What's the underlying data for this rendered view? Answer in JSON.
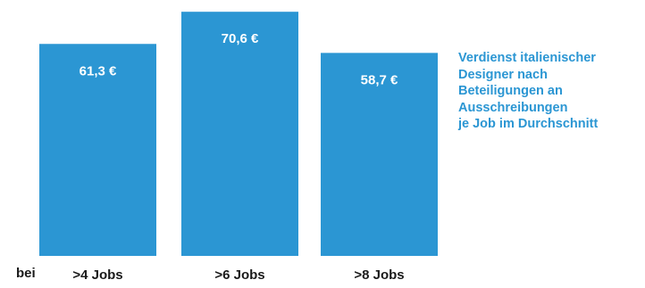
{
  "chart_data": {
    "type": "bar",
    "title_lines": [
      "Verdienst italienischer",
      "Designer nach",
      "Beteiligungen an",
      "Ausschreibungen",
      "je Job im Durchschnitt"
    ],
    "category_prefix": "bei",
    "categories": [
      ">4 Jobs",
      ">6 Jobs",
      ">8 Jobs"
    ],
    "values": [
      61.3,
      70.6,
      58.7
    ],
    "value_labels": [
      "61,3 €",
      "70,6 €",
      "58,7 €"
    ],
    "ylim": [
      0,
      74
    ],
    "grid": false,
    "colors": {
      "bar": "#2b96d3",
      "title": "#2b96d3",
      "bar_label": "#ffffff",
      "axis_text": "#1a1a1a"
    }
  }
}
